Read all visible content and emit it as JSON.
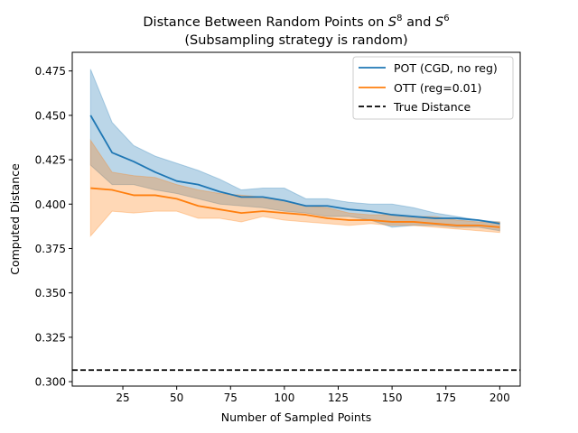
{
  "chart_data": {
    "type": "line",
    "title": "Distance Between Random Points on S⁸ and S⁶",
    "subtitle": "(Subsampling strategy is random)",
    "xlabel": "Number of Sampled Points",
    "ylabel": "Computed Distance",
    "xlim": [
      1.5,
      209.5
    ],
    "ylim": [
      0.2975,
      0.4855
    ],
    "xticks": [
      25,
      50,
      75,
      100,
      125,
      150,
      175,
      200
    ],
    "xtick_labels": [
      "25",
      "50",
      "75",
      "100",
      "125",
      "150",
      "175",
      "200"
    ],
    "yticks": [
      0.3,
      0.325,
      0.35,
      0.375,
      0.4,
      0.425,
      0.45,
      0.475
    ],
    "ytick_labels": [
      "0.300",
      "0.325",
      "0.350",
      "0.375",
      "0.400",
      "0.425",
      "0.450",
      "0.475"
    ],
    "grid": false,
    "legend_position": "top-right",
    "x": [
      10,
      20,
      30,
      40,
      50,
      60,
      70,
      80,
      90,
      100,
      110,
      120,
      130,
      140,
      150,
      160,
      170,
      180,
      190,
      200
    ],
    "series": [
      {
        "name": "POT (CGD, no reg)",
        "color": "#1f77b4",
        "values": [
          0.45,
          0.429,
          0.424,
          0.418,
          0.413,
          0.411,
          0.407,
          0.404,
          0.404,
          0.402,
          0.399,
          0.399,
          0.397,
          0.396,
          0.394,
          0.393,
          0.392,
          0.392,
          0.391,
          0.389
        ],
        "lower": [
          0.422,
          0.411,
          0.411,
          0.408,
          0.406,
          0.403,
          0.4,
          0.399,
          0.398,
          0.396,
          0.395,
          0.393,
          0.393,
          0.391,
          0.387,
          0.388,
          0.388,
          0.387,
          0.387,
          0.385
        ],
        "upper": [
          0.476,
          0.446,
          0.433,
          0.427,
          0.423,
          0.419,
          0.414,
          0.408,
          0.409,
          0.409,
          0.403,
          0.403,
          0.401,
          0.4,
          0.4,
          0.398,
          0.395,
          0.393,
          0.391,
          0.39
        ]
      },
      {
        "name": "OTT (reg=0.01)",
        "color": "#ff7f0e",
        "values": [
          0.409,
          0.408,
          0.405,
          0.405,
          0.403,
          0.399,
          0.397,
          0.395,
          0.396,
          0.395,
          0.394,
          0.392,
          0.391,
          0.391,
          0.39,
          0.39,
          0.389,
          0.388,
          0.388,
          0.387
        ],
        "lower": [
          0.382,
          0.396,
          0.395,
          0.396,
          0.396,
          0.392,
          0.392,
          0.39,
          0.393,
          0.391,
          0.39,
          0.389,
          0.388,
          0.389,
          0.388,
          0.388,
          0.387,
          0.386,
          0.385,
          0.384
        ],
        "upper": [
          0.436,
          0.418,
          0.416,
          0.415,
          0.411,
          0.408,
          0.406,
          0.405,
          0.404,
          0.402,
          0.399,
          0.398,
          0.395,
          0.394,
          0.394,
          0.393,
          0.393,
          0.391,
          0.39,
          0.39
        ]
      }
    ],
    "reference_line": {
      "name": "True Distance",
      "y": 0.3065,
      "color": "#000000",
      "style": "dashed"
    }
  }
}
